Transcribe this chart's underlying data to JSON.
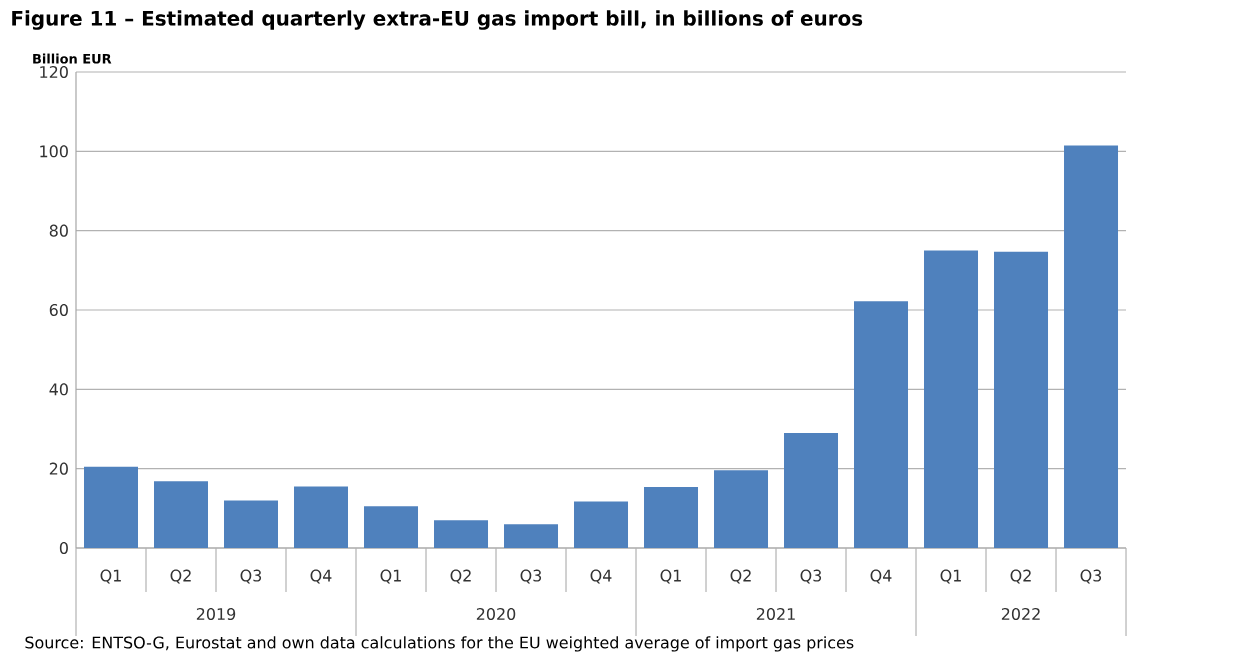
{
  "chart_data": {
    "type": "bar",
    "title": "Figure 11 – Estimated quarterly extra-EU gas import bill, in billions of euros",
    "ylabel": "Billion EUR",
    "categories": [
      "Q1",
      "Q2",
      "Q3",
      "Q4",
      "Q1",
      "Q2",
      "Q3",
      "Q4",
      "Q1",
      "Q2",
      "Q3",
      "Q4",
      "Q1",
      "Q2",
      "Q3"
    ],
    "values": [
      20.5,
      16.8,
      12,
      15.5,
      10.5,
      7,
      6,
      11.7,
      15.4,
      19.6,
      29,
      62.2,
      75,
      74.7,
      101.5
    ],
    "color": "#4f81bd",
    "ylim": [
      0,
      120
    ],
    "yticks": [
      0,
      20,
      40,
      60,
      80,
      100,
      120
    ],
    "grid": "y",
    "annotations": [
      "2019",
      "2020",
      "2021",
      "2022",
      "Source: ENTSO-G, Eurostat and own data calculations for the EU weighted average of import gas prices"
    ]
  }
}
